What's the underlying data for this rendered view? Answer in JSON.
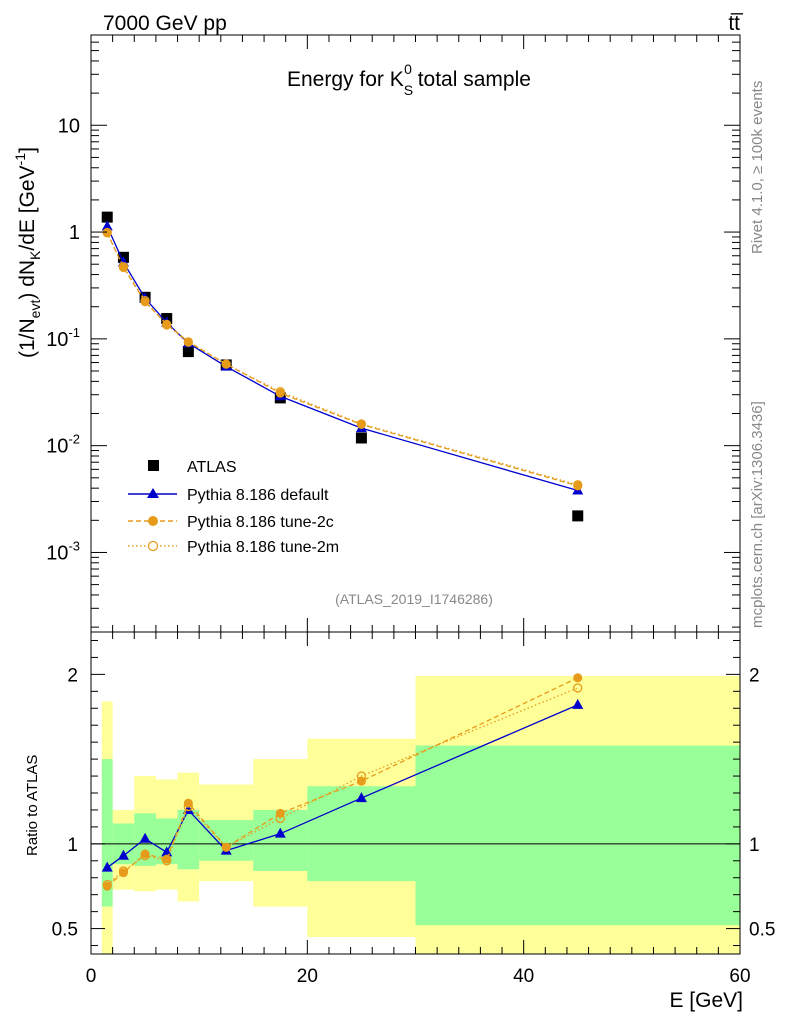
{
  "header": {
    "left": "7000 GeV pp",
    "right": "tt̅"
  },
  "side_texts": {
    "rivet": "Rivet 4.1.0, ≥ 100k events",
    "mcplots": "mcplots.cern.ch [arXiv:1306.3436]"
  },
  "chart_data": [
    {
      "type": "scatter",
      "panel": "main",
      "title_parts": {
        "pre": "Energy for K",
        "sup": "0",
        "sub": "S",
        "post": " total sample"
      },
      "ylabel_parts": {
        "a": "(1/N",
        "a_sub": "evt",
        "b": ") dN",
        "b_sub": "K",
        "c": "/dE [GeV",
        "c_sup": "-1",
        "d": "]"
      },
      "yscale": "log",
      "ylim": [
        0.00018,
        70
      ],
      "xlim": [
        0,
        60
      ],
      "yticks": [
        {
          "value": 0.001,
          "base": "10",
          "exp": "-3"
        },
        {
          "value": 0.01,
          "base": "10",
          "exp": "-2"
        },
        {
          "value": 0.1,
          "base": "10",
          "exp": "-1"
        },
        {
          "value": 1,
          "base": "1",
          "exp": ""
        },
        {
          "value": 10,
          "base": "10",
          "exp": ""
        }
      ],
      "watermark": "(ATLAS_2019_I1746286)",
      "legend_position": "lower-left",
      "series": [
        {
          "name": "ATLAS",
          "style": "data",
          "color": "#000000",
          "x": [
            1.5,
            3,
            5,
            7,
            9,
            12.5,
            17.5,
            25,
            45
          ],
          "y": [
            1.38,
            0.58,
            0.245,
            0.155,
            0.076,
            0.057,
            0.028,
            0.0118,
            0.0022
          ]
        },
        {
          "name": "Pythia 8.186 default",
          "style": "solid-triangle",
          "color": "#0000cc",
          "x": [
            1.5,
            3,
            5,
            7,
            9,
            12.5,
            17.5,
            25,
            45
          ],
          "y": [
            1.13,
            0.52,
            0.24,
            0.142,
            0.091,
            0.055,
            0.029,
            0.0146,
            0.0038
          ]
        },
        {
          "name": "Pythia 8.186 tune-2c",
          "style": "dashed-circle",
          "color": "#e69c1a",
          "x": [
            1.5,
            3,
            5,
            7,
            9,
            12.5,
            17.5,
            25,
            45
          ],
          "y": [
            0.98,
            0.465,
            0.222,
            0.137,
            0.094,
            0.058,
            0.031,
            0.0158,
            0.0042
          ]
        },
        {
          "name": "Pythia 8.186 tune-2m",
          "style": "dotted-open-circle",
          "color": "#e69c1a",
          "x": [
            1.5,
            3,
            5,
            7,
            9,
            12.5,
            17.5,
            25,
            45
          ],
          "y": [
            0.99,
            0.475,
            0.228,
            0.135,
            0.093,
            0.058,
            0.032,
            0.016,
            0.0043
          ]
        }
      ]
    },
    {
      "type": "scatter",
      "panel": "ratio",
      "ylabel": "Ratio to ATLAS",
      "xlabel": "E [GeV]",
      "xlim": [
        0,
        60
      ],
      "ylim": [
        0.35,
        2.25
      ],
      "xticks": [
        0,
        20,
        40,
        60
      ],
      "yticks": [
        {
          "value": 0.5,
          "label": "0.5"
        },
        {
          "value": 1,
          "label": "1"
        },
        {
          "value": 2,
          "label": "2"
        }
      ],
      "bands": {
        "edges": [
          1,
          2,
          4,
          6,
          8,
          10,
          15,
          20,
          30,
          60
        ],
        "green": [
          [
            0.63,
            1.5
          ],
          [
            0.88,
            1.12
          ],
          [
            0.87,
            1.18
          ],
          [
            0.88,
            1.15
          ],
          [
            0.85,
            1.2
          ],
          [
            0.9,
            1.14
          ],
          [
            0.84,
            1.2
          ],
          [
            0.78,
            1.34
          ],
          [
            0.52,
            1.58
          ]
        ],
        "yellow": [
          [
            0.28,
            1.84
          ],
          [
            0.73,
            1.2
          ],
          [
            0.72,
            1.4
          ],
          [
            0.73,
            1.38
          ],
          [
            0.66,
            1.42
          ],
          [
            0.78,
            1.35
          ],
          [
            0.63,
            1.5
          ],
          [
            0.45,
            1.62
          ],
          [
            0.28,
            1.99
          ]
        ]
      },
      "series": [
        {
          "name": "Pythia 8.186 default",
          "style": "solid-triangle",
          "color": "#0000cc",
          "x": [
            1.5,
            3,
            5,
            7,
            9,
            12.5,
            17.5,
            25,
            45
          ],
          "y": [
            0.86,
            0.93,
            1.03,
            0.95,
            1.2,
            0.96,
            1.06,
            1.27,
            1.82
          ]
        },
        {
          "name": "Pythia 8.186 tune-2c",
          "style": "dashed-circle",
          "color": "#e69c1a",
          "x": [
            1.5,
            3,
            5,
            7,
            9,
            12.5,
            17.5,
            25,
            45
          ],
          "y": [
            0.75,
            0.83,
            0.94,
            0.91,
            1.24,
            0.98,
            1.18,
            1.37,
            1.98
          ]
        },
        {
          "name": "Pythia 8.186 tune-2m",
          "style": "dotted-open-circle",
          "color": "#e69c1a",
          "x": [
            1.5,
            3,
            5,
            7,
            9,
            12.5,
            17.5,
            25,
            45
          ],
          "y": [
            0.76,
            0.84,
            0.93,
            0.9,
            1.22,
            0.98,
            1.15,
            1.4,
            1.92
          ]
        }
      ]
    }
  ]
}
